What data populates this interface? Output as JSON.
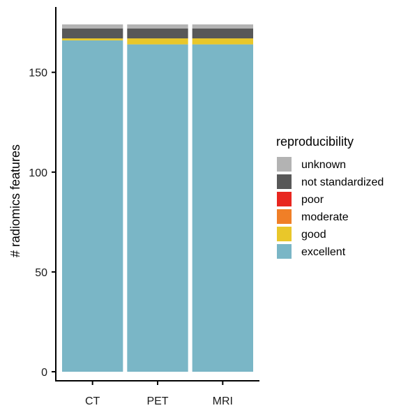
{
  "chart_data": {
    "type": "bar",
    "stacked": true,
    "categories": [
      "CT",
      "PET",
      "MRI"
    ],
    "ylabel": "# radiomics features",
    "xlabel": "",
    "ylim": [
      0,
      174
    ],
    "yticks": [
      0,
      50,
      100,
      150
    ],
    "grid": false,
    "legend": {
      "title": "reproducibility",
      "placement": "right",
      "entries": [
        "unknown",
        "not standardized",
        "poor",
        "moderate",
        "good",
        "excellent"
      ]
    },
    "series": [
      {
        "name": "excellent",
        "color": "#7AB6C6",
        "values": [
          166,
          164,
          164
        ]
      },
      {
        "name": "good",
        "color": "#E9C72A",
        "values": [
          1,
          3,
          3
        ]
      },
      {
        "name": "moderate",
        "color": "#F07F27",
        "values": [
          0,
          0,
          0
        ]
      },
      {
        "name": "poor",
        "color": "#E8261F",
        "values": [
          0,
          0,
          0
        ]
      },
      {
        "name": "not standardized",
        "color": "#585858",
        "values": [
          5,
          5,
          5
        ]
      },
      {
        "name": "unknown",
        "color": "#B3B3B3",
        "values": [
          2,
          2,
          2
        ]
      }
    ]
  }
}
